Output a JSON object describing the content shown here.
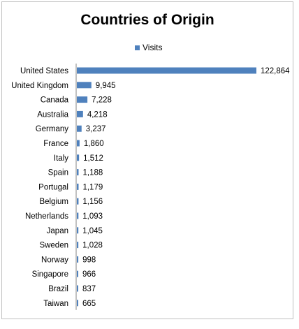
{
  "chart_data": {
    "type": "bar",
    "orientation": "horizontal",
    "title": "Countries of Origin",
    "categories": [
      "United States",
      "United Kingdom",
      "Canada",
      "Australia",
      "Germany",
      "France",
      "Italy",
      "Spain",
      "Portugal",
      "Belgium",
      "Netherlands",
      "Japan",
      "Sweden",
      "Norway",
      "Singapore",
      "Brazil",
      "Taiwan"
    ],
    "series": [
      {
        "name": "Visits",
        "values": [
          122864,
          9945,
          7228,
          4218,
          3237,
          1860,
          1512,
          1188,
          1179,
          1156,
          1093,
          1045,
          1028,
          998,
          966,
          837,
          665
        ],
        "labels": [
          "122,864",
          "9,945",
          "7,228",
          "4,218",
          "3,237",
          "1,860",
          "1,512",
          "1,188",
          "1,179",
          "1,156",
          "1,093",
          "1,045",
          "1,028",
          "998",
          "966",
          "837",
          "665"
        ]
      }
    ],
    "xlim": [
      0,
      122864
    ],
    "grid": false,
    "legend_position": "top",
    "bar_color": "#4f81bd"
  }
}
